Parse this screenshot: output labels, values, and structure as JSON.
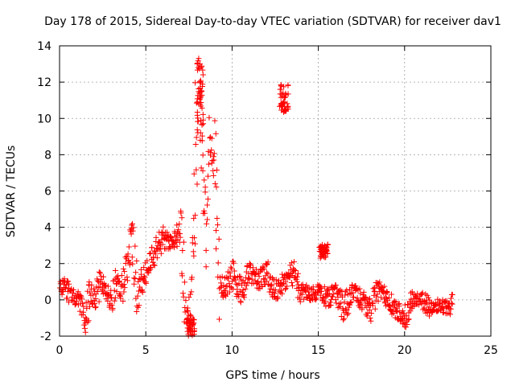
{
  "chart_data": {
    "type": "scatter",
    "title": "Day 178 of 2015, Sidereal Day-to-day VTEC variation (SDTVAR) for receiver dav1",
    "xlabel": "GPS time / hours",
    "ylabel": "SDTVAR / TECUs",
    "xlim": [
      0,
      25
    ],
    "ylim": [
      -2,
      14
    ],
    "xticks": [
      "0",
      "5",
      "10",
      "15",
      "20",
      "25"
    ],
    "yticks": [
      "-2",
      "0",
      "2",
      "4",
      "6",
      "8",
      "10",
      "12",
      "14"
    ],
    "grid": true,
    "marker": "+",
    "colors": {
      "series": "#ff0000",
      "grid": "#a0a0a0",
      "axis": "#000000"
    },
    "series": [
      {
        "name": "SDTVAR",
        "approx_trend": [
          [
            0.0,
            0.5
          ],
          [
            0.3,
            0.8
          ],
          [
            0.6,
            0.3
          ],
          [
            0.9,
            0.2
          ],
          [
            1.2,
            -0.2
          ],
          [
            1.5,
            -1.0
          ],
          [
            1.8,
            0.5
          ],
          [
            2.1,
            0.0
          ],
          [
            2.4,
            1.2
          ],
          [
            2.7,
            0.5
          ],
          [
            3.0,
            0.0
          ],
          [
            3.3,
            1.0
          ],
          [
            3.6,
            0.5
          ],
          [
            3.9,
            1.8
          ],
          [
            4.2,
            3.5
          ],
          [
            4.5,
            0.2
          ],
          [
            5.0,
            1.5
          ],
          [
            5.5,
            2.5
          ],
          [
            6.0,
            3.5
          ],
          [
            6.5,
            3.0
          ],
          [
            7.0,
            3.8
          ],
          [
            7.3,
            0.0
          ],
          [
            7.5,
            -1.5
          ],
          [
            7.7,
            1.0
          ],
          [
            7.9,
            7.0
          ],
          [
            8.1,
            12.5
          ],
          [
            8.3,
            7.0
          ],
          [
            8.5,
            4.0
          ],
          [
            8.7,
            8.5
          ],
          [
            9.0,
            7.0
          ],
          [
            9.3,
            1.0
          ],
          [
            9.6,
            0.5
          ],
          [
            10.0,
            1.5
          ],
          [
            10.5,
            0.5
          ],
          [
            11.0,
            1.5
          ],
          [
            11.5,
            1.0
          ],
          [
            12.0,
            1.5
          ],
          [
            12.5,
            0.5
          ],
          [
            13.0,
            1.0
          ],
          [
            13.5,
            1.5
          ],
          [
            14.0,
            0.5
          ],
          [
            14.5,
            0.3
          ],
          [
            15.0,
            0.5
          ],
          [
            15.5,
            0.0
          ],
          [
            16.0,
            0.5
          ],
          [
            16.5,
            -0.5
          ],
          [
            17.0,
            0.5
          ],
          [
            17.5,
            0.0
          ],
          [
            18.0,
            -0.5
          ],
          [
            18.5,
            0.5
          ],
          [
            19.0,
            0.0
          ],
          [
            19.5,
            -0.5
          ],
          [
            20.0,
            -1.0
          ],
          [
            20.5,
            0.0
          ],
          [
            21.0,
            0.0
          ],
          [
            21.5,
            -0.5
          ],
          [
            22.0,
            -0.3
          ],
          [
            22.5,
            -0.5
          ],
          [
            22.8,
            0.0
          ]
        ],
        "clusters": [
          {
            "x": 13.0,
            "y_low": 10.3,
            "y_high": 11.9,
            "note": "isolated cluster near 13 h"
          },
          {
            "x": 15.3,
            "y_low": 2.3,
            "y_high": 3.1,
            "note": "isolated cluster near 15.3 h"
          },
          {
            "x": 8.1,
            "y_low": 9.0,
            "y_high": 13.2,
            "note": "peak"
          },
          {
            "x": 7.6,
            "y_low": -2.0,
            "y_high": -1.0,
            "note": "dip"
          }
        ]
      }
    ]
  }
}
